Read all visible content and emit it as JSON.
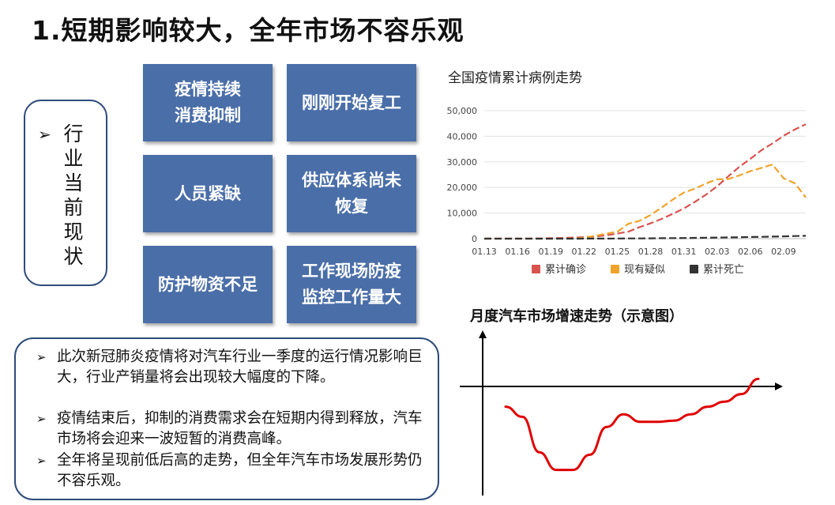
{
  "title": "1.短期影响较大，全年市场不容乐观",
  "side_label": {
    "bullet": "➢",
    "text": "行业当前现状"
  },
  "tiles": [
    {
      "label": "疫情持续\n消费抑制"
    },
    {
      "label": "刚刚开始复工"
    },
    {
      "label": "人员紧缺"
    },
    {
      "label": "供应体系尚未\n恢复"
    },
    {
      "label": "防护物资不足"
    },
    {
      "label": "工作现场防疫\n监控工作量大"
    }
  ],
  "notes": [
    {
      "bullet": "➢",
      "text": "此次新冠肺炎疫情将对汽车行业一季度的运行情况影响巨大，行业产销量将会出现较大幅度的下降。"
    },
    {
      "bullet": "➢",
      "text": "疫情结束后，抑制的消费需求会在短期内得到释放，汽车市场将会迎来一波短暂的消费高峰。"
    },
    {
      "bullet": "➢",
      "text": "全年将呈现前低后高的走势，但全年汽车市场发展形势仍不容乐观。"
    }
  ],
  "chart_data": [
    {
      "type": "line",
      "title": "全国疫情累计病例走势",
      "x_ticks": [
        "01.13",
        "01.16",
        "01.19",
        "01.22",
        "01.25",
        "01.28",
        "01.31",
        "02.03",
        "02.06",
        "02.09"
      ],
      "x": [
        "01.13",
        "01.14",
        "01.15",
        "01.16",
        "01.17",
        "01.18",
        "01.19",
        "01.20",
        "01.21",
        "01.22",
        "01.23",
        "01.24",
        "01.25",
        "01.26",
        "01.27",
        "01.28",
        "01.29",
        "01.30",
        "01.31",
        "02.01",
        "02.02",
        "02.03",
        "02.04",
        "02.05",
        "02.06",
        "02.07",
        "02.08",
        "02.09",
        "02.10",
        "02.11"
      ],
      "y_ticks": [
        "0",
        "10,000",
        "20,000",
        "30,000",
        "40,000",
        "50,000"
      ],
      "ylim": [
        0,
        50000
      ],
      "grid": true,
      "legend_position": "bottom",
      "series": [
        {
          "name": "累计确诊",
          "color": "#d9534f",
          "values": [
            41,
            41,
            41,
            45,
            62,
            121,
            198,
            291,
            440,
            571,
            830,
            1287,
            1975,
            2744,
            4515,
            5974,
            7711,
            9692,
            11791,
            14380,
            17205,
            20438,
            24324,
            28018,
            31161,
            34546,
            37198,
            40171,
            42638,
            44653
          ]
        },
        {
          "name": "现有疑似",
          "color": "#f0a32a",
          "values": [
            0,
            0,
            0,
            0,
            0,
            0,
            0,
            54,
            37,
            393,
            1072,
            1965,
            2684,
            5794,
            6973,
            9239,
            12167,
            15238,
            17988,
            19544,
            21558,
            23214,
            23260,
            24702,
            26359,
            27657,
            28942,
            23589,
            21675,
            16067
          ]
        },
        {
          "name": "累计死亡",
          "color": "#333333",
          "values": [
            1,
            1,
            1,
            1,
            2,
            2,
            3,
            6,
            9,
            17,
            25,
            41,
            56,
            80,
            106,
            132,
            170,
            213,
            259,
            304,
            361,
            425,
            490,
            563,
            636,
            722,
            811,
            908,
            1016,
            1113
          ]
        }
      ]
    },
    {
      "type": "line",
      "title": "月度汽车市场增速走势（示意图）",
      "x_ticks": [],
      "y_ticks": [],
      "series": [
        {
          "color": "#e00000",
          "values": [
            -0.8,
            -1.2,
            -2.6,
            -3.3,
            -3.3,
            -2.7,
            -1.6,
            -1.1,
            -1.4,
            -1.4,
            -1.35,
            -1.1,
            -0.8,
            -0.6,
            -0.3,
            0.3
          ]
        }
      ]
    }
  ]
}
